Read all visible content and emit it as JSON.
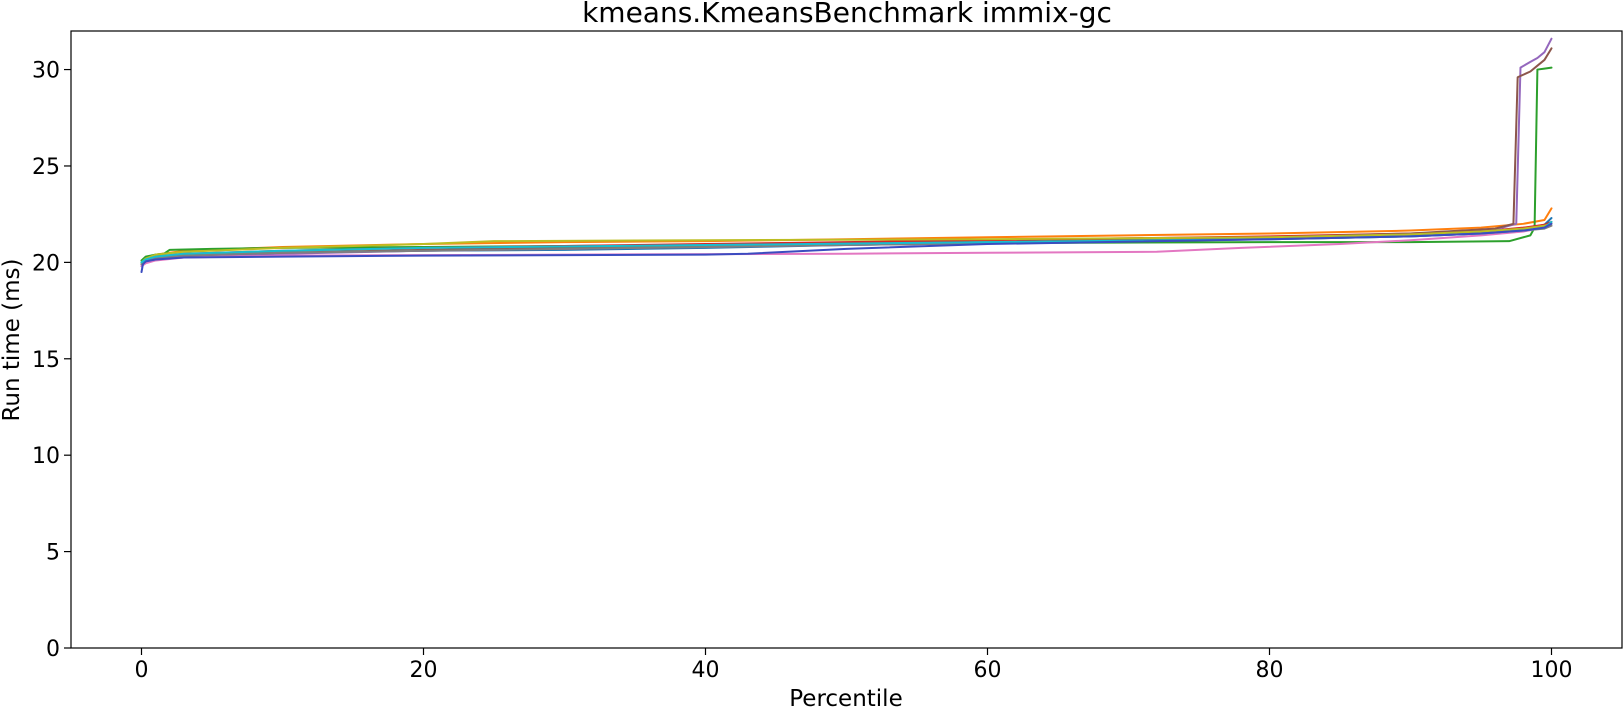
{
  "chart_data": {
    "type": "line",
    "title": "kmeans.KmeansBenchmark immix-gc",
    "xlabel": "Percentile",
    "ylabel": "Run time (ms)",
    "xlim": [
      -5,
      105
    ],
    "ylim": [
      0,
      32
    ],
    "xticks": [
      0,
      20,
      40,
      60,
      80,
      100
    ],
    "yticks": [
      0,
      5,
      10,
      15,
      20,
      25,
      30
    ],
    "grid": false,
    "legend": "none",
    "series": [
      {
        "color": "#1f77b4",
        "x": [
          0,
          0.3,
          1,
          3,
          10,
          20,
          30,
          40,
          50,
          60,
          70,
          80,
          90,
          95,
          98,
          99.5,
          100
        ],
        "y": [
          20.0,
          20.15,
          20.3,
          20.4,
          20.5,
          20.6,
          20.65,
          20.75,
          20.9,
          21.0,
          21.1,
          21.25,
          21.4,
          21.55,
          21.75,
          21.95,
          22.3
        ]
      },
      {
        "color": "#ff7f0e",
        "x": [
          0,
          0.3,
          1,
          3,
          10,
          20,
          30,
          40,
          50,
          60,
          70,
          80,
          90,
          95,
          98,
          99.5,
          100
        ],
        "y": [
          20.0,
          20.2,
          20.4,
          20.6,
          20.8,
          20.95,
          21.05,
          21.1,
          21.2,
          21.3,
          21.4,
          21.5,
          21.65,
          21.8,
          22.0,
          22.2,
          22.8
        ]
      },
      {
        "color": "#2ca02c",
        "x": [
          0,
          0.3,
          1,
          1.6,
          2,
          5,
          10,
          20,
          40,
          60,
          80,
          90,
          97,
          98.5,
          98.8,
          99,
          99.5,
          100
        ],
        "y": [
          20.1,
          20.3,
          20.4,
          20.45,
          20.65,
          20.7,
          20.75,
          20.8,
          20.9,
          21.0,
          21.05,
          21.05,
          21.1,
          21.4,
          21.8,
          30.0,
          30.05,
          30.1
        ]
      },
      {
        "color": "#d62728",
        "x": [
          0,
          0.3,
          1,
          3,
          10,
          20,
          30,
          40,
          50,
          60,
          70,
          80,
          90,
          95,
          98,
          99.5,
          100
        ],
        "y": [
          19.9,
          20.1,
          20.3,
          20.45,
          20.6,
          20.75,
          20.85,
          20.95,
          21.05,
          21.15,
          21.25,
          21.35,
          21.5,
          21.6,
          21.8,
          21.95,
          22.1
        ]
      },
      {
        "color": "#9467bd",
        "x": [
          0,
          0.3,
          1,
          3,
          10,
          20,
          40,
          60,
          80,
          90,
          96,
          97.5,
          97.8,
          98.5,
          99,
          99.5,
          100
        ],
        "y": [
          19.8,
          20.0,
          20.15,
          20.3,
          20.45,
          20.6,
          20.8,
          21.0,
          21.25,
          21.45,
          21.7,
          22.0,
          30.1,
          30.4,
          30.6,
          30.9,
          31.6
        ]
      },
      {
        "color": "#8c564b",
        "x": [
          0,
          0.3,
          1,
          3,
          10,
          20,
          40,
          60,
          80,
          90,
          96,
          97.3,
          97.6,
          98.5,
          99,
          99.5,
          100
        ],
        "y": [
          19.9,
          20.05,
          20.2,
          20.35,
          20.5,
          20.65,
          20.85,
          21.05,
          21.3,
          21.5,
          21.75,
          22.0,
          29.6,
          29.9,
          30.2,
          30.5,
          31.1
        ]
      },
      {
        "color": "#e377c2",
        "x": [
          0,
          0.3,
          1,
          3,
          10,
          30,
          50,
          60,
          72,
          78,
          85,
          90,
          95,
          98,
          99.5,
          100
        ],
        "y": [
          19.8,
          19.95,
          20.1,
          20.25,
          20.35,
          20.4,
          20.45,
          20.5,
          20.55,
          20.75,
          20.95,
          21.15,
          21.4,
          21.6,
          21.8,
          22.0
        ]
      },
      {
        "color": "#7f7f7f",
        "x": [
          0,
          0.3,
          1,
          3,
          10,
          20,
          40,
          60,
          80,
          90,
          95,
          98,
          99.5,
          100
        ],
        "y": [
          19.9,
          20.05,
          20.2,
          20.35,
          20.5,
          20.6,
          20.8,
          21.0,
          21.2,
          21.35,
          21.5,
          21.65,
          21.75,
          21.9
        ]
      },
      {
        "color": "#bcbd22",
        "x": [
          0,
          0.3,
          1,
          3,
          10,
          20,
          25,
          40,
          60,
          80,
          90,
          95,
          98,
          99.5,
          100
        ],
        "y": [
          20.0,
          20.2,
          20.4,
          20.55,
          20.75,
          20.95,
          21.1,
          21.15,
          21.2,
          21.3,
          21.45,
          21.6,
          21.75,
          21.9,
          22.0
        ]
      },
      {
        "color": "#17becf",
        "x": [
          0,
          0.3,
          1,
          3,
          10,
          20,
          40,
          60,
          80,
          90,
          95,
          98,
          99.5,
          100
        ],
        "y": [
          20.0,
          20.15,
          20.3,
          20.45,
          20.6,
          20.75,
          20.9,
          21.05,
          21.2,
          21.35,
          21.5,
          21.65,
          21.8,
          22.1
        ]
      },
      {
        "color": "#3b4cc0",
        "x": [
          0,
          0.1,
          0.3,
          1,
          3,
          10,
          20,
          40,
          43,
          50,
          60,
          80,
          90,
          95,
          98,
          99.5,
          100
        ],
        "y": [
          19.5,
          19.9,
          20.05,
          20.15,
          20.25,
          20.3,
          20.35,
          20.4,
          20.45,
          20.7,
          20.95,
          21.2,
          21.35,
          21.5,
          21.65,
          21.8,
          22.0
        ]
      }
    ]
  }
}
